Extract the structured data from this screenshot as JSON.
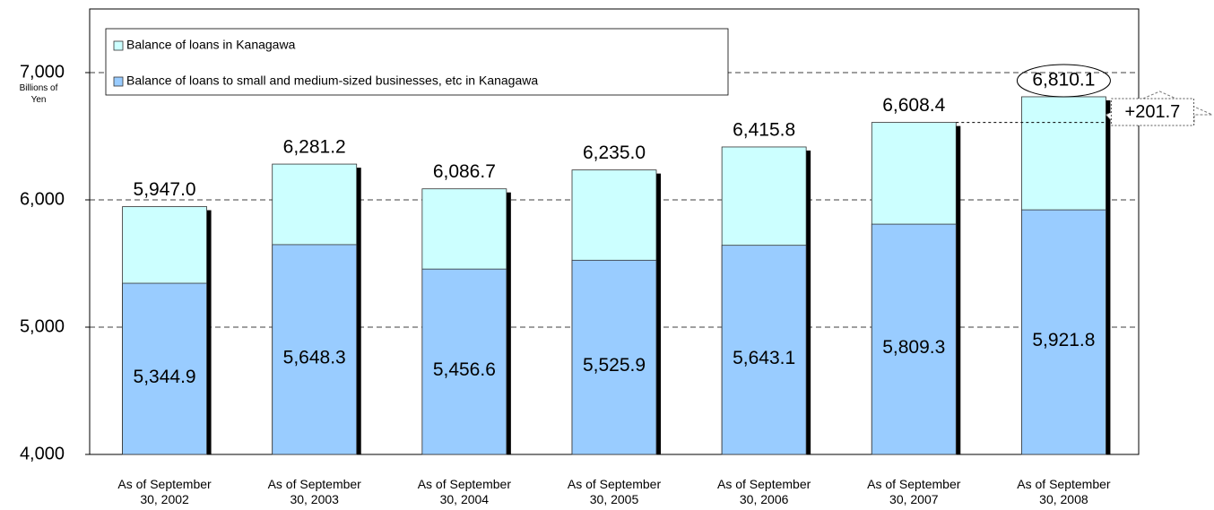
{
  "chart_data": {
    "type": "bar",
    "y_unit_label": "Billions of Yen",
    "categories": [
      "As of September 30, 2002",
      "As of September 30, 2003",
      "As of September 30, 2004",
      "As of September 30, 2005",
      "As of September 30, 2006",
      "As of September 30, 2007",
      "As of September 30, 2008"
    ],
    "series": [
      {
        "name": "Balance of loans in Kanagawa",
        "color": "#ccffff",
        "values": [
          5947.0,
          6281.2,
          6086.7,
          6235.0,
          6415.8,
          6608.4,
          6810.1
        ],
        "value_labels": [
          "5,947.0",
          "6,281.2",
          "6,086.7",
          "6,235.0",
          "6,415.8",
          "6,608.4",
          "6,810.1"
        ]
      },
      {
        "name": "Balance of loans to small and medium-sized businesses, etc in Kanagawa",
        "color": "#99ccff",
        "values": [
          5344.9,
          5648.3,
          5456.6,
          5525.9,
          5643.1,
          5809.3,
          5921.8
        ],
        "value_labels": [
          "5,344.9",
          "5,648.3",
          "5,456.6",
          "5,525.9",
          "5,643.1",
          "5,809.3",
          "5,921.8"
        ]
      }
    ],
    "annotation": "+201.7",
    "ylim": [
      4000,
      7500
    ],
    "yticks": [
      {
        "value": 4000,
        "label": "4,000"
      },
      {
        "value": 5000,
        "label": "5,000"
      },
      {
        "value": 6000,
        "label": "6,000"
      },
      {
        "value": 7000,
        "label": "7,000"
      }
    ],
    "grid": true
  }
}
